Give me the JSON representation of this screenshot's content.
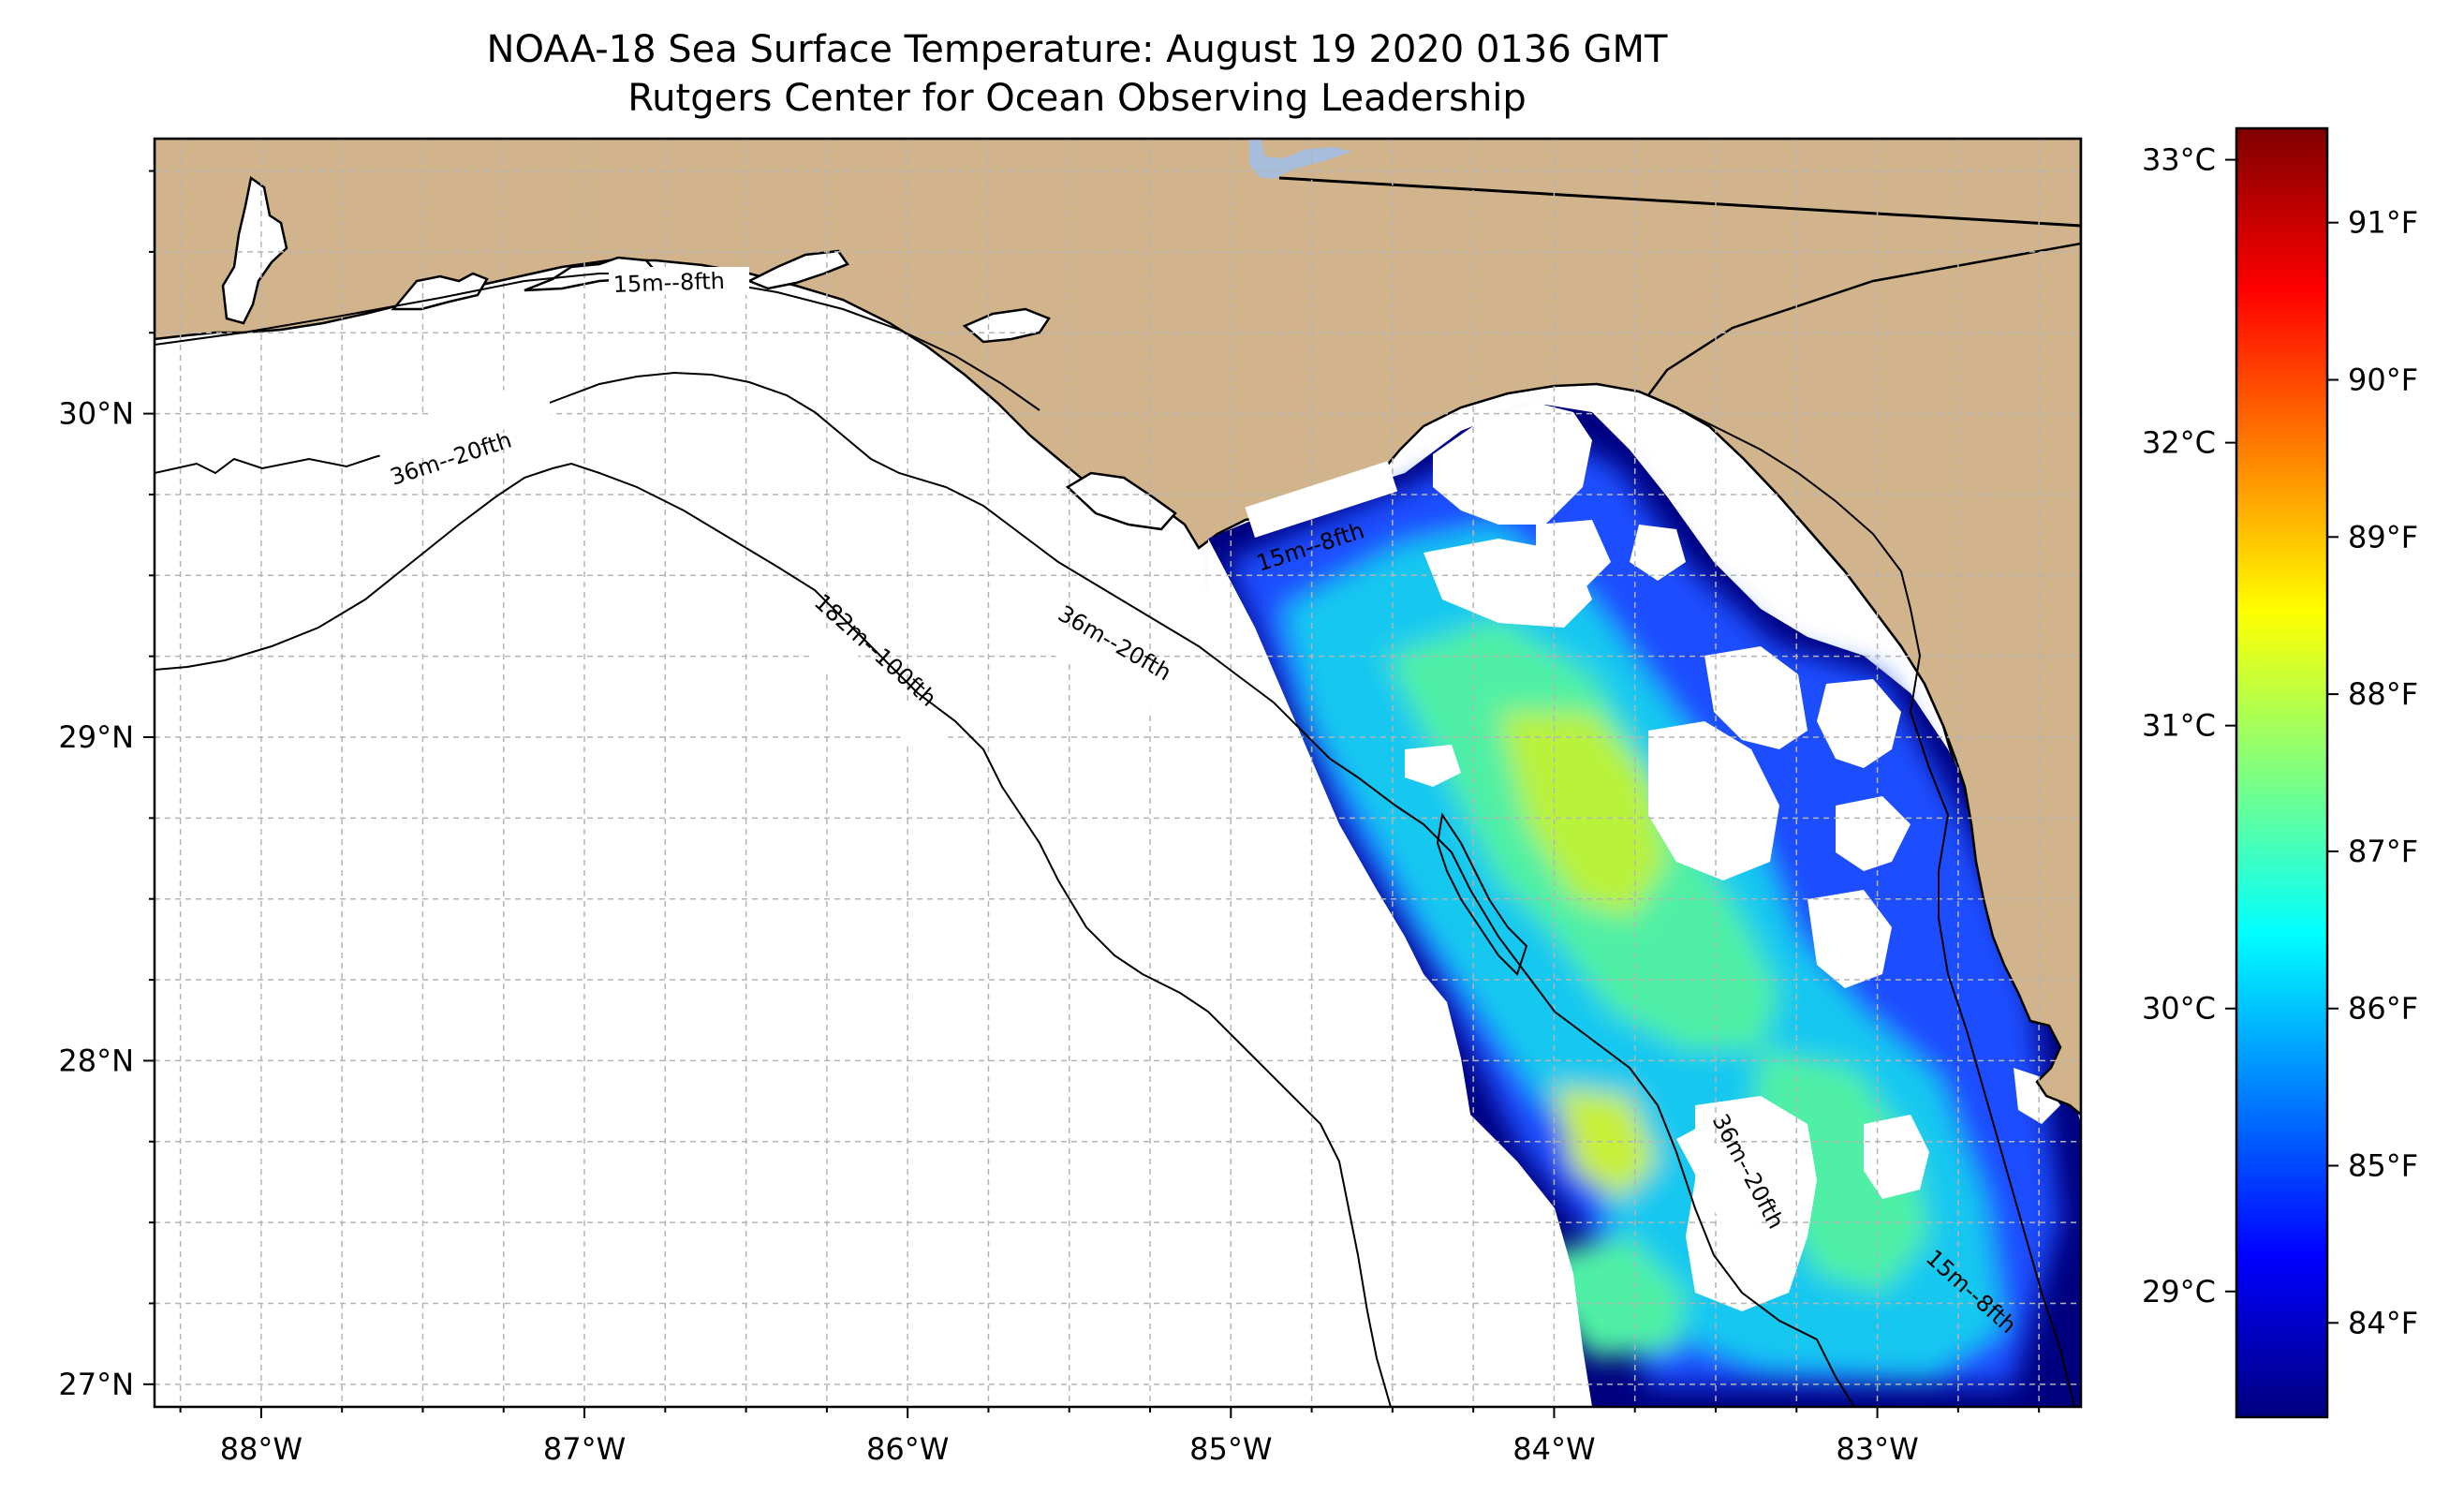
{
  "title": {
    "line1": "NOAA-18 Sea Surface Temperature: August 19 2020 0136 GMT",
    "line2": "Rutgers Center for Ocean Observing Leadership"
  },
  "map": {
    "lon_range": [
      -88.33,
      -82.37
    ],
    "lat_range": [
      26.93,
      30.85
    ],
    "x_ticks": [
      {
        "lon": -88,
        "label": "88°W"
      },
      {
        "lon": -87,
        "label": "87°W"
      },
      {
        "lon": -86,
        "label": "86°W"
      },
      {
        "lon": -85,
        "label": "85°W"
      },
      {
        "lon": -84,
        "label": "84°W"
      },
      {
        "lon": -83,
        "label": "83°W"
      }
    ],
    "y_ticks": [
      {
        "lat": 27,
        "label": "27°N"
      },
      {
        "lat": 28,
        "label": "28°N"
      },
      {
        "lat": 29,
        "label": "29°N"
      },
      {
        "lat": 30,
        "label": "30°N"
      }
    ],
    "contour_labels": [
      {
        "id": "15m-north",
        "text": "15m--8fth"
      },
      {
        "id": "36m-west",
        "text": "36m--20fth"
      },
      {
        "id": "15m-bigbend",
        "text": "15m--8fth"
      },
      {
        "id": "182m",
        "text": "182m--100fth"
      },
      {
        "id": "36m-mid",
        "text": "36m--20fth"
      },
      {
        "id": "36m-south",
        "text": "36m--20fth"
      },
      {
        "id": "15m-south",
        "text": "15m--8fth"
      }
    ],
    "colors": {
      "land": "#d2b48c",
      "ocean": "#ffffff",
      "grid": "#b4b4b4",
      "lake": "#a6bddb"
    }
  },
  "colorbar": {
    "celsius_ticks": [
      {
        "value": 29,
        "label": "29°C"
      },
      {
        "value": 30,
        "label": "30°C"
      },
      {
        "value": 31,
        "label": "31°C"
      },
      {
        "value": 32,
        "label": "32°C"
      },
      {
        "value": 33,
        "label": "33°C"
      }
    ],
    "fahrenheit_ticks": [
      {
        "value": 84,
        "label": "84°F"
      },
      {
        "value": 85,
        "label": "85°F"
      },
      {
        "value": 86,
        "label": "86°F"
      },
      {
        "value": 87,
        "label": "87°F"
      },
      {
        "value": 88,
        "label": "88°F"
      },
      {
        "value": 89,
        "label": "89°F"
      },
      {
        "value": 90,
        "label": "90°F"
      },
      {
        "value": 91,
        "label": "91°F"
      }
    ],
    "range_f": [
      83.4,
      91.6
    ],
    "colormap": "jet"
  }
}
